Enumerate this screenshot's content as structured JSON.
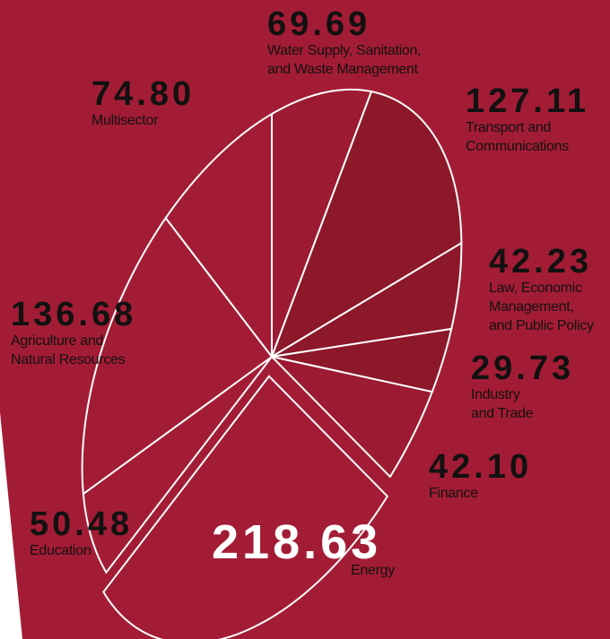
{
  "chart_data": {
    "type": "pie",
    "categories": [
      "Water Supply, Sanitation,\nand Waste Management",
      "Transport and\nCommunications",
      "Law, Economic\nManagement,\nand Public Policy",
      "Industry\nand Trade",
      "Finance",
      "Energy",
      "Education",
      "Agriculture and\nNatural Resources",
      "Multisector"
    ],
    "values": [
      69.69,
      127.11,
      42.23,
      29.73,
      42.1,
      218.63,
      50.48,
      136.68,
      74.8
    ],
    "value_labels": [
      "69.69",
      "127.11",
      "42.23",
      "29.73",
      "42.10",
      "218.63",
      "50.48",
      "136.68",
      "74.80"
    ],
    "colors": [
      "#9c1b32",
      "#8c1829",
      "#8c1829",
      "#8c1829",
      "#9c1b32",
      "#a31c35",
      "#a31c35",
      "#a31c35",
      "#a31c35"
    ]
  }
}
